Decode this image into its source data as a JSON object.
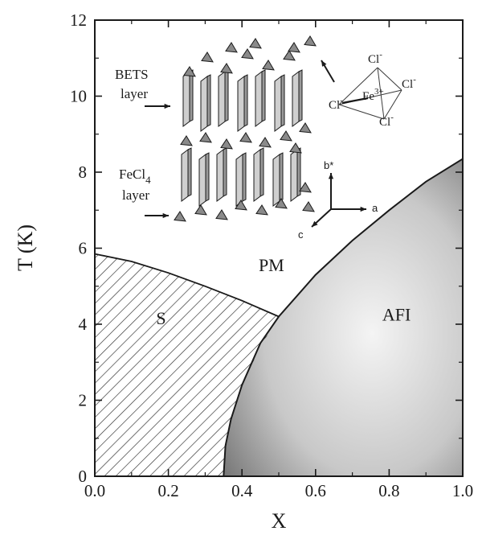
{
  "chart_data": {
    "type": "area",
    "title": "",
    "xlabel": "X",
    "ylabel": "T (K)",
    "xlim": [
      0.0,
      1.0
    ],
    "ylim": [
      0,
      12
    ],
    "x_ticks": [
      "0.0",
      "0.2",
      "0.4",
      "0.6",
      "0.8",
      "1.0"
    ],
    "y_ticks": [
      "0",
      "2",
      "4",
      "6",
      "8",
      "10",
      "12"
    ],
    "grid": false,
    "series": [
      {
        "name": "S",
        "description_shape": "hatched",
        "boundary_top": [
          [
            0.0,
            5.85
          ],
          [
            0.1,
            5.65
          ],
          [
            0.2,
            5.35
          ],
          [
            0.3,
            5.0
          ],
          [
            0.4,
            4.62
          ],
          [
            0.5,
            4.2
          ]
        ],
        "boundary_right": [
          [
            0.5,
            4.2
          ],
          [
            0.45,
            3.4
          ],
          [
            0.41,
            2.6
          ],
          [
            0.38,
            1.8
          ],
          [
            0.36,
            1.0
          ],
          [
            0.35,
            0.0
          ]
        ]
      },
      {
        "name": "AFI",
        "description_shape": "shaded",
        "boundary": [
          [
            0.35,
            0.0
          ],
          [
            0.355,
            0.8
          ],
          [
            0.37,
            1.5
          ],
          [
            0.4,
            2.4
          ],
          [
            0.45,
            3.5
          ],
          [
            0.5,
            4.2
          ],
          [
            0.6,
            5.3
          ],
          [
            0.7,
            6.2
          ],
          [
            0.8,
            7.0
          ],
          [
            0.9,
            7.75
          ],
          [
            1.0,
            8.35
          ]
        ]
      }
    ],
    "regions": [
      {
        "label": "PM",
        "x": 0.48,
        "y": 5.4
      },
      {
        "label": "S",
        "x": 0.18,
        "y": 4.0
      },
      {
        "label": "AFI",
        "x": 0.82,
        "y": 4.1
      }
    ],
    "annotations": {
      "betts_line1": "BETS",
      "betts_line2": "layer",
      "fecl4_main": "FeCl",
      "fecl4_sub": "4",
      "fecl4_line2": "layer",
      "ion_cl": "Cl",
      "ion_minus": "-",
      "ion_fe": "Fe",
      "ion_fe_charge": "3+",
      "axis_b": "b*",
      "axis_a": "a",
      "axis_c": "c"
    }
  },
  "colors": {
    "axis": "#1a1a1a",
    "afi_center": "#f4f4f4",
    "afi_edge": "#7a7a7a",
    "hatch": "#2b2b2b",
    "slab": "#cfcfcf",
    "anion": "#8a8a8a"
  }
}
